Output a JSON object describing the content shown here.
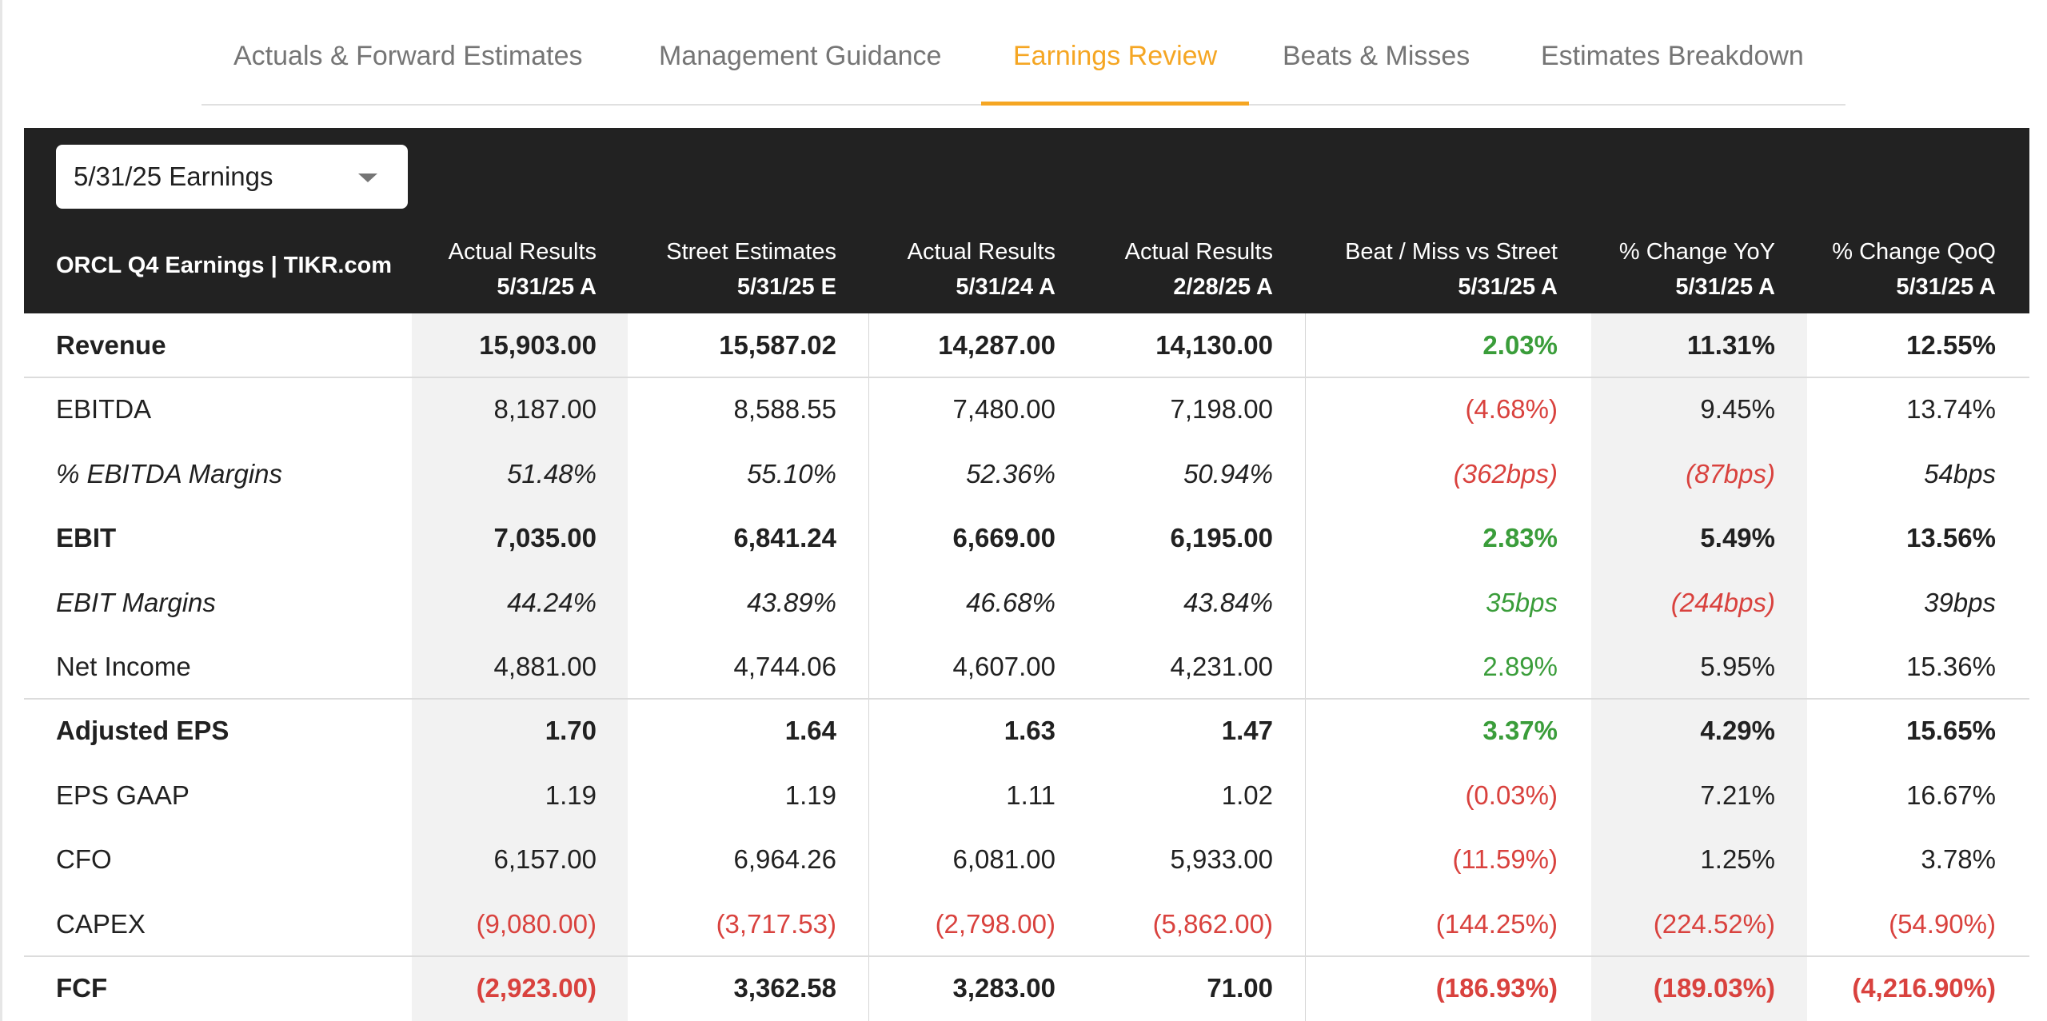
{
  "tabs": [
    {
      "label": "Actuals & Forward Estimates",
      "active": false
    },
    {
      "label": "Management Guidance",
      "active": false
    },
    {
      "label": "Earnings Review",
      "active": true
    },
    {
      "label": "Beats & Misses",
      "active": false
    },
    {
      "label": "Estimates Breakdown",
      "active": false
    }
  ],
  "dropdown": {
    "selected": "5/31/25 Earnings"
  },
  "table": {
    "title": "ORCL Q4 Earnings | TIKR.com",
    "columns": [
      {
        "line1": "Actual Results",
        "line2": "5/31/25 A"
      },
      {
        "line1": "Street Estimates",
        "line2": "5/31/25 E"
      },
      {
        "line1": "Actual Results",
        "line2": "5/31/24 A"
      },
      {
        "line1": "Actual Results",
        "line2": "2/28/25 A"
      },
      {
        "line1": "Beat / Miss vs Street",
        "line2": "5/31/25 A"
      },
      {
        "line1": "% Change YoY",
        "line2": "5/31/25 A"
      },
      {
        "line1": "% Change QoQ",
        "line2": "5/31/25 A"
      }
    ],
    "rows": [
      {
        "label": "Revenue",
        "style": "bold",
        "values": [
          "15,903.00",
          "15,587.02",
          "14,287.00",
          "14,130.00",
          "2.03%",
          "11.31%",
          "12.55%"
        ],
        "colors": [
          "",
          "",
          "",
          "",
          "pos",
          "",
          ""
        ]
      },
      {
        "label": "EBITDA",
        "style": "normal",
        "values": [
          "8,187.00",
          "8,588.55",
          "7,480.00",
          "7,198.00",
          "(4.68%)",
          "9.45%",
          "13.74%"
        ],
        "colors": [
          "",
          "",
          "",
          "",
          "neg",
          "",
          ""
        ]
      },
      {
        "label": "% EBITDA Margins",
        "style": "italic",
        "values": [
          "51.48%",
          "55.10%",
          "52.36%",
          "50.94%",
          "(362bps)",
          "(87bps)",
          "54bps"
        ],
        "colors": [
          "",
          "",
          "",
          "",
          "neg",
          "neg",
          ""
        ]
      },
      {
        "label": "EBIT",
        "style": "bold",
        "values": [
          "7,035.00",
          "6,841.24",
          "6,669.00",
          "6,195.00",
          "2.83%",
          "5.49%",
          "13.56%"
        ],
        "colors": [
          "",
          "",
          "",
          "",
          "pos",
          "",
          ""
        ]
      },
      {
        "label": "EBIT Margins",
        "style": "italic",
        "values": [
          "44.24%",
          "43.89%",
          "46.68%",
          "43.84%",
          "35bps",
          "(244bps)",
          "39bps"
        ],
        "colors": [
          "",
          "",
          "",
          "",
          "pos",
          "neg",
          ""
        ]
      },
      {
        "label": "Net Income",
        "style": "normal",
        "values": [
          "4,881.00",
          "4,744.06",
          "4,607.00",
          "4,231.00",
          "2.89%",
          "5.95%",
          "15.36%"
        ],
        "colors": [
          "",
          "",
          "",
          "",
          "pos",
          "",
          ""
        ]
      },
      {
        "label": "Adjusted EPS",
        "style": "bold",
        "values": [
          "1.70",
          "1.64",
          "1.63",
          "1.47",
          "3.37%",
          "4.29%",
          "15.65%"
        ],
        "colors": [
          "",
          "",
          "",
          "",
          "pos",
          "",
          ""
        ]
      },
      {
        "label": "EPS GAAP",
        "style": "normal",
        "values": [
          "1.19",
          "1.19",
          "1.11",
          "1.02",
          "(0.03%)",
          "7.21%",
          "16.67%"
        ],
        "colors": [
          "",
          "",
          "",
          "",
          "neg",
          "",
          ""
        ]
      },
      {
        "label": "CFO",
        "style": "normal",
        "values": [
          "6,157.00",
          "6,964.26",
          "6,081.00",
          "5,933.00",
          "(11.59%)",
          "1.25%",
          "3.78%"
        ],
        "colors": [
          "",
          "",
          "",
          "",
          "neg",
          "",
          ""
        ]
      },
      {
        "label": "CAPEX",
        "style": "normal",
        "values": [
          "(9,080.00)",
          "(3,717.53)",
          "(2,798.00)",
          "(5,862.00)",
          "(144.25%)",
          "(224.52%)",
          "(54.90%)"
        ],
        "colors": [
          "neg",
          "neg",
          "neg",
          "neg",
          "neg",
          "neg",
          "neg"
        ]
      },
      {
        "label": "FCF",
        "style": "bold",
        "values": [
          "(2,923.00)",
          "3,362.58",
          "3,283.00",
          "71.00",
          "(186.93%)",
          "(189.03%)",
          "(4,216.90%)"
        ],
        "colors": [
          "neg",
          "",
          "",
          "",
          "neg",
          "neg",
          "neg"
        ]
      }
    ]
  },
  "colors": {
    "accent": "#f5a623",
    "positive": "#3a9d3a",
    "negative": "#d9423e",
    "header_bg": "#222222"
  }
}
